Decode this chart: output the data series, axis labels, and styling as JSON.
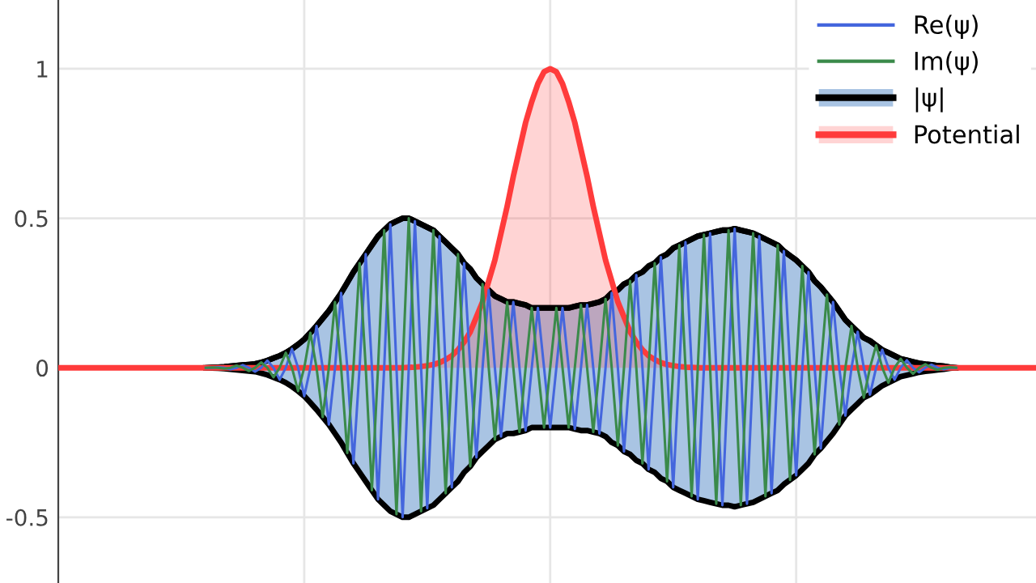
{
  "chart_data": {
    "type": "line",
    "categories": [
      null,
      null,
      null,
      null,
      null,
      null,
      null,
      null,
      null,
      null,
      null,
      null,
      null,
      null,
      null,
      null,
      null,
      null,
      null,
      null,
      null,
      null,
      null,
      null,
      null,
      null,
      null,
      null,
      null,
      null,
      null,
      null,
      null,
      null,
      null,
      null,
      null,
      null,
      null,
      null,
      null,
      null,
      null,
      null,
      null,
      null,
      null,
      null,
      null,
      null,
      null,
      null,
      null,
      null,
      null,
      null,
      null,
      null,
      null,
      null,
      null,
      null,
      null,
      null,
      null,
      null,
      null,
      null,
      null,
      null,
      null,
      null,
      null,
      null,
      null,
      null,
      null,
      null,
      null,
      null,
      null,
      null,
      null,
      null,
      null,
      null,
      null,
      null,
      null,
      null,
      null,
      null,
      null,
      null,
      null,
      null,
      null,
      null,
      null,
      null,
      null,
      null,
      null,
      null,
      null,
      null,
      null,
      null,
      null,
      null,
      null,
      null,
      null,
      null,
      null,
      null,
      null,
      null,
      null,
      null,
      null,
      null,
      null,
      null,
      null,
      null,
      null,
      null,
      null,
      null,
      null,
      null,
      null,
      null,
      null,
      null,
      null,
      null,
      null,
      null,
      null,
      null,
      null,
      null,
      null,
      null,
      null,
      null,
      null,
      null,
      null,
      null,
      null,
      null,
      null,
      null,
      null,
      null,
      null,
      null
    ],
    "ylim": [
      -0.72,
      1.23
    ],
    "yticks": [
      1,
      0.5,
      0,
      -0.5
    ],
    "tick_labels": "y",
    "grid": true,
    "legend": "top right",
    "series": [
      {
        "name": "Re(ψ)",
        "color": "#4466dd",
        "values": [
          null,
          null,
          null,
          null,
          null,
          null,
          null,
          null,
          null,
          null,
          null,
          null,
          null,
          null,
          null,
          null,
          null,
          null,
          null,
          null,
          null,
          null,
          null,
          null,
          0,
          0,
          0.002,
          0,
          -0.005,
          0,
          0.009,
          0,
          -0.013,
          0,
          0.024,
          0,
          -0.04,
          0,
          0.063,
          0,
          -0.095,
          0,
          0.14,
          0,
          -0.19,
          0,
          0.25,
          0,
          -0.32,
          0,
          0.38,
          0,
          -0.44,
          0,
          0.48,
          0,
          -0.5,
          0,
          0.49,
          0,
          -0.47,
          0,
          0.44,
          0,
          -0.4,
          0,
          0.35,
          0,
          -0.3,
          0,
          0.26,
          0,
          -0.23,
          0,
          0.22,
          0,
          -0.21,
          0,
          0.2,
          0,
          -0.2,
          0,
          0.2,
          0,
          -0.205,
          0,
          0.21,
          0,
          -0.22,
          0,
          0.25,
          0,
          -0.28,
          0,
          0.31,
          0,
          -0.34,
          0,
          0.37,
          0,
          -0.4,
          0,
          0.42,
          0,
          -0.44,
          0,
          0.45,
          0,
          -0.46,
          0,
          0.465,
          0,
          -0.455,
          0,
          0.44,
          0,
          -0.42,
          0,
          0.39,
          0,
          -0.36,
          0,
          0.32,
          0,
          -0.27,
          0,
          0.22,
          0,
          -0.16,
          0,
          0.12,
          0,
          -0.09,
          0,
          0.06,
          0,
          -0.04,
          0,
          0.025,
          0,
          -0.015,
          0,
          0.01,
          0,
          -0.005,
          0,
          0,
          null,
          null,
          null,
          null,
          null,
          null,
          null,
          null,
          null,
          null,
          null,
          null,
          null
        ]
      },
      {
        "name": "Im(ψ)",
        "color": "#3a8a4a",
        "values": [
          null,
          null,
          null,
          null,
          null,
          null,
          null,
          null,
          null,
          null,
          null,
          null,
          null,
          null,
          null,
          null,
          null,
          null,
          null,
          null,
          null,
          null,
          null,
          null,
          0,
          0.001,
          0,
          -0.003,
          0,
          0.007,
          0,
          -0.011,
          0,
          0.018,
          0,
          -0.032,
          0,
          0.05,
          0,
          -0.078,
          0,
          0.117,
          0,
          -0.165,
          0,
          0.22,
          0,
          -0.285,
          0,
          0.35,
          0,
          -0.41,
          0,
          0.46,
          0,
          -0.49,
          0,
          0.5,
          0,
          -0.48,
          0,
          0.46,
          0,
          -0.42,
          0,
          0.38,
          0,
          -0.33,
          0,
          0.28,
          0,
          -0.24,
          0,
          0.22,
          0,
          -0.215,
          0,
          0.2,
          0,
          -0.2,
          0,
          0.2,
          0,
          -0.2,
          0,
          0.21,
          0,
          -0.215,
          0,
          0.23,
          0,
          -0.26,
          0,
          0.29,
          0,
          -0.32,
          0,
          0.35,
          0,
          -0.38,
          0,
          0.41,
          0,
          -0.43,
          0,
          0.445,
          0,
          -0.455,
          0,
          0.46,
          0,
          -0.46,
          0,
          0.45,
          0,
          -0.43,
          0,
          0.41,
          0,
          -0.375,
          0,
          0.34,
          0,
          -0.29,
          0,
          0.245,
          0,
          -0.19,
          0,
          0.14,
          0,
          -0.1,
          0,
          0.075,
          0,
          -0.05,
          0,
          0.03,
          0,
          -0.02,
          0,
          0.012,
          0,
          -0.007,
          0,
          0.002,
          0,
          null,
          null,
          null,
          null,
          null,
          null,
          null,
          null,
          null,
          null,
          null,
          null,
          null
        ]
      },
      {
        "name": "|ψ|",
        "color": "#000000",
        "values": [
          null,
          null,
          null,
          null,
          null,
          null,
          null,
          null,
          null,
          null,
          null,
          null,
          null,
          null,
          null,
          null,
          null,
          null,
          null,
          null,
          null,
          null,
          null,
          null,
          0,
          0.001,
          0.002,
          0.003,
          0.005,
          0.007,
          0.009,
          0.011,
          0.013,
          0.018,
          0.024,
          0.032,
          0.04,
          0.05,
          0.063,
          0.078,
          0.095,
          0.117,
          0.14,
          0.165,
          0.19,
          0.22,
          0.25,
          0.285,
          0.32,
          0.35,
          0.38,
          0.41,
          0.44,
          0.46,
          0.48,
          0.49,
          0.5,
          0.5,
          0.49,
          0.48,
          0.47,
          0.46,
          0.44,
          0.42,
          0.4,
          0.38,
          0.35,
          0.33,
          0.3,
          0.28,
          0.26,
          0.24,
          0.23,
          0.22,
          0.22,
          0.215,
          0.21,
          0.2,
          0.2,
          0.2,
          0.2,
          0.2,
          0.2,
          0.2,
          0.205,
          0.21,
          0.21,
          0.215,
          0.22,
          0.23,
          0.25,
          0.26,
          0.28,
          0.29,
          0.31,
          0.32,
          0.34,
          0.35,
          0.37,
          0.38,
          0.4,
          0.41,
          0.42,
          0.43,
          0.44,
          0.445,
          0.45,
          0.455,
          0.46,
          0.46,
          0.465,
          0.46,
          0.455,
          0.45,
          0.44,
          0.43,
          0.42,
          0.41,
          0.39,
          0.375,
          0.36,
          0.34,
          0.32,
          0.29,
          0.27,
          0.245,
          0.22,
          0.19,
          0.16,
          0.14,
          0.12,
          0.1,
          0.09,
          0.075,
          0.06,
          0.05,
          0.04,
          0.03,
          0.025,
          0.02,
          0.015,
          0.012,
          0.01,
          0.007,
          0.005,
          0.002,
          0,
          null,
          null,
          null,
          null,
          null,
          null,
          null,
          null,
          null,
          null,
          null,
          null,
          null
        ],
        "lower": [
          null,
          null,
          null,
          null,
          null,
          null,
          null,
          null,
          null,
          null,
          null,
          null,
          null,
          null,
          null,
          null,
          null,
          null,
          null,
          null,
          null,
          null,
          null,
          null,
          0,
          -0.001,
          -0.002,
          -0.003,
          -0.005,
          -0.007,
          -0.009,
          -0.011,
          -0.013,
          -0.018,
          -0.024,
          -0.032,
          -0.04,
          -0.05,
          -0.063,
          -0.078,
          -0.095,
          -0.117,
          -0.14,
          -0.165,
          -0.19,
          -0.22,
          -0.25,
          -0.285,
          -0.32,
          -0.35,
          -0.38,
          -0.41,
          -0.44,
          -0.46,
          -0.48,
          -0.49,
          -0.5,
          -0.5,
          -0.49,
          -0.48,
          -0.47,
          -0.46,
          -0.44,
          -0.42,
          -0.4,
          -0.38,
          -0.35,
          -0.33,
          -0.3,
          -0.28,
          -0.26,
          -0.24,
          -0.23,
          -0.22,
          -0.22,
          -0.215,
          -0.21,
          -0.2,
          -0.2,
          -0.2,
          -0.2,
          -0.2,
          -0.2,
          -0.2,
          -0.205,
          -0.21,
          -0.21,
          -0.215,
          -0.22,
          -0.23,
          -0.25,
          -0.26,
          -0.28,
          -0.29,
          -0.31,
          -0.32,
          -0.34,
          -0.35,
          -0.37,
          -0.38,
          -0.4,
          -0.41,
          -0.42,
          -0.43,
          -0.44,
          -0.445,
          -0.45,
          -0.455,
          -0.46,
          -0.46,
          -0.465,
          -0.46,
          -0.455,
          -0.45,
          -0.44,
          -0.43,
          -0.42,
          -0.41,
          -0.39,
          -0.375,
          -0.36,
          -0.34,
          -0.32,
          -0.29,
          -0.27,
          -0.245,
          -0.22,
          -0.19,
          -0.16,
          -0.14,
          -0.12,
          -0.1,
          -0.09,
          -0.075,
          -0.06,
          -0.05,
          -0.04,
          -0.03,
          -0.025,
          -0.02,
          -0.015,
          -0.012,
          -0.01,
          -0.007,
          -0.005,
          -0.002,
          0,
          null,
          null,
          null,
          null,
          null,
          null,
          null,
          null,
          null,
          null,
          null,
          null,
          null
        ],
        "upper": [
          null,
          null,
          null,
          null,
          null,
          null,
          null,
          null,
          null,
          null,
          null,
          null,
          null,
          null,
          null,
          null,
          null,
          null,
          null,
          null,
          null,
          null,
          null,
          null,
          0,
          0.001,
          0.002,
          0.003,
          0.005,
          0.007,
          0.009,
          0.011,
          0.013,
          0.018,
          0.024,
          0.032,
          0.04,
          0.05,
          0.063,
          0.078,
          0.095,
          0.117,
          0.14,
          0.165,
          0.19,
          0.22,
          0.25,
          0.285,
          0.32,
          0.35,
          0.38,
          0.41,
          0.44,
          0.46,
          0.48,
          0.49,
          0.5,
          0.5,
          0.49,
          0.48,
          0.47,
          0.46,
          0.44,
          0.42,
          0.4,
          0.38,
          0.35,
          0.33,
          0.3,
          0.28,
          0.26,
          0.24,
          0.23,
          0.22,
          0.22,
          0.215,
          0.21,
          0.2,
          0.2,
          0.2,
          0.2,
          0.2,
          0.2,
          0.2,
          0.205,
          0.21,
          0.21,
          0.215,
          0.22,
          0.23,
          0.25,
          0.26,
          0.28,
          0.29,
          0.31,
          0.32,
          0.34,
          0.35,
          0.37,
          0.38,
          0.4,
          0.41,
          0.42,
          0.43,
          0.44,
          0.445,
          0.45,
          0.455,
          0.46,
          0.46,
          0.465,
          0.46,
          0.455,
          0.45,
          0.44,
          0.43,
          0.42,
          0.41,
          0.39,
          0.375,
          0.36,
          0.34,
          0.32,
          0.29,
          0.27,
          0.245,
          0.22,
          0.19,
          0.16,
          0.14,
          0.12,
          0.1,
          0.09,
          0.075,
          0.06,
          0.05,
          0.04,
          0.03,
          0.025,
          0.02,
          0.015,
          0.012,
          0.01,
          0.007,
          0.005,
          0.002,
          0,
          null,
          null,
          null,
          null,
          null,
          null,
          null,
          null,
          null,
          null,
          null,
          null,
          null
        ]
      },
      {
        "name": "Potential",
        "type": "area",
        "color": "#ff3b3b",
        "values": [
          0,
          0,
          0,
          0,
          0,
          0,
          0,
          0,
          0,
          0,
          0,
          0,
          0,
          0,
          0,
          0,
          0,
          0,
          0,
          0,
          0,
          0,
          0,
          0,
          0,
          0,
          0,
          0,
          0,
          0,
          0,
          0,
          0,
          0,
          0,
          0,
          0,
          0,
          0,
          0,
          0,
          0,
          0,
          0,
          0,
          0,
          0,
          0,
          0,
          0,
          0,
          0,
          0,
          0,
          0,
          0,
          0,
          0.001,
          0.002,
          0.004,
          0.007,
          0.011,
          0.017,
          0.027,
          0.04,
          0.06,
          0.086,
          0.12,
          0.17,
          0.22,
          0.29,
          0.36,
          0.45,
          0.54,
          0.64,
          0.73,
          0.82,
          0.89,
          0.95,
          0.99,
          1,
          0.99,
          0.95,
          0.89,
          0.82,
          0.73,
          0.64,
          0.54,
          0.45,
          0.36,
          0.29,
          0.22,
          0.17,
          0.12,
          0.086,
          0.06,
          0.04,
          0.027,
          0.017,
          0.011,
          0.007,
          0.004,
          0.002,
          0.001,
          0,
          0,
          0,
          0,
          0,
          0,
          0,
          0,
          0,
          0,
          0,
          0,
          0,
          0,
          0,
          0,
          0,
          0,
          0,
          0,
          0,
          0,
          0,
          0,
          0,
          0,
          0,
          0,
          0,
          0,
          0,
          0,
          0,
          0,
          0,
          0,
          0,
          0,
          0,
          0,
          0,
          0,
          0,
          0,
          0,
          0,
          0,
          0,
          0,
          0,
          0,
          0,
          0,
          0,
          0,
          0
        ]
      }
    ]
  }
}
